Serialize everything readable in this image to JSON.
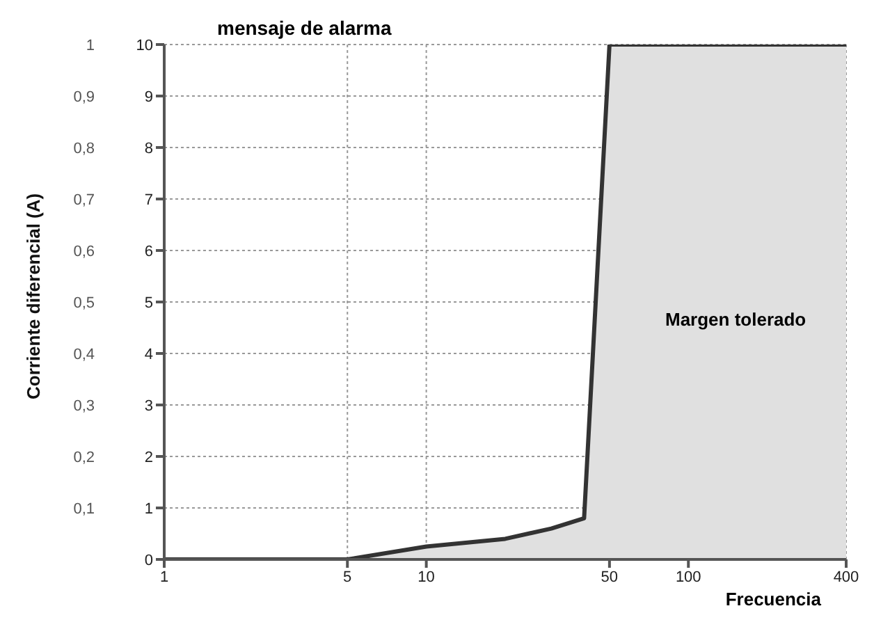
{
  "chart_data": {
    "type": "area",
    "title": "mensaje de alarma",
    "xlabel": "Frecuencia",
    "y2label": "Corriente diferencial (A)",
    "x": [
      1,
      5,
      10,
      20,
      30,
      40,
      50,
      400
    ],
    "series": [
      {
        "color": "#e0e0e0",
        "values": [
          0,
          0,
          0.25,
          0.4,
          0.6,
          0.8,
          10,
          10
        ]
      }
    ],
    "log": "x",
    "xlim": [
      1,
      400
    ],
    "xticks": [
      1,
      5,
      10,
      50,
      100,
      400
    ],
    "ylim": [
      0,
      10
    ],
    "yticks": [
      0,
      1,
      2,
      3,
      4,
      5,
      6,
      7,
      8,
      9,
      10
    ],
    "y2lim": [
      0,
      1
    ],
    "y2ticks": [
      {
        "value": 0.1,
        "label": "0,1"
      },
      {
        "value": 0.2,
        "label": "0,2"
      },
      {
        "value": 0.3,
        "label": "0,3"
      },
      {
        "value": 0.4,
        "label": "0,4"
      },
      {
        "value": 0.5,
        "label": "0,5"
      },
      {
        "value": 0.6,
        "label": "0,6"
      },
      {
        "value": 0.7,
        "label": "0,7"
      },
      {
        "value": 0.8,
        "label": "0,8"
      },
      {
        "value": 0.9,
        "label": "0,9"
      },
      1
    ],
    "grid": true,
    "legend": false,
    "annotations": [
      "Margen tolerado"
    ]
  }
}
